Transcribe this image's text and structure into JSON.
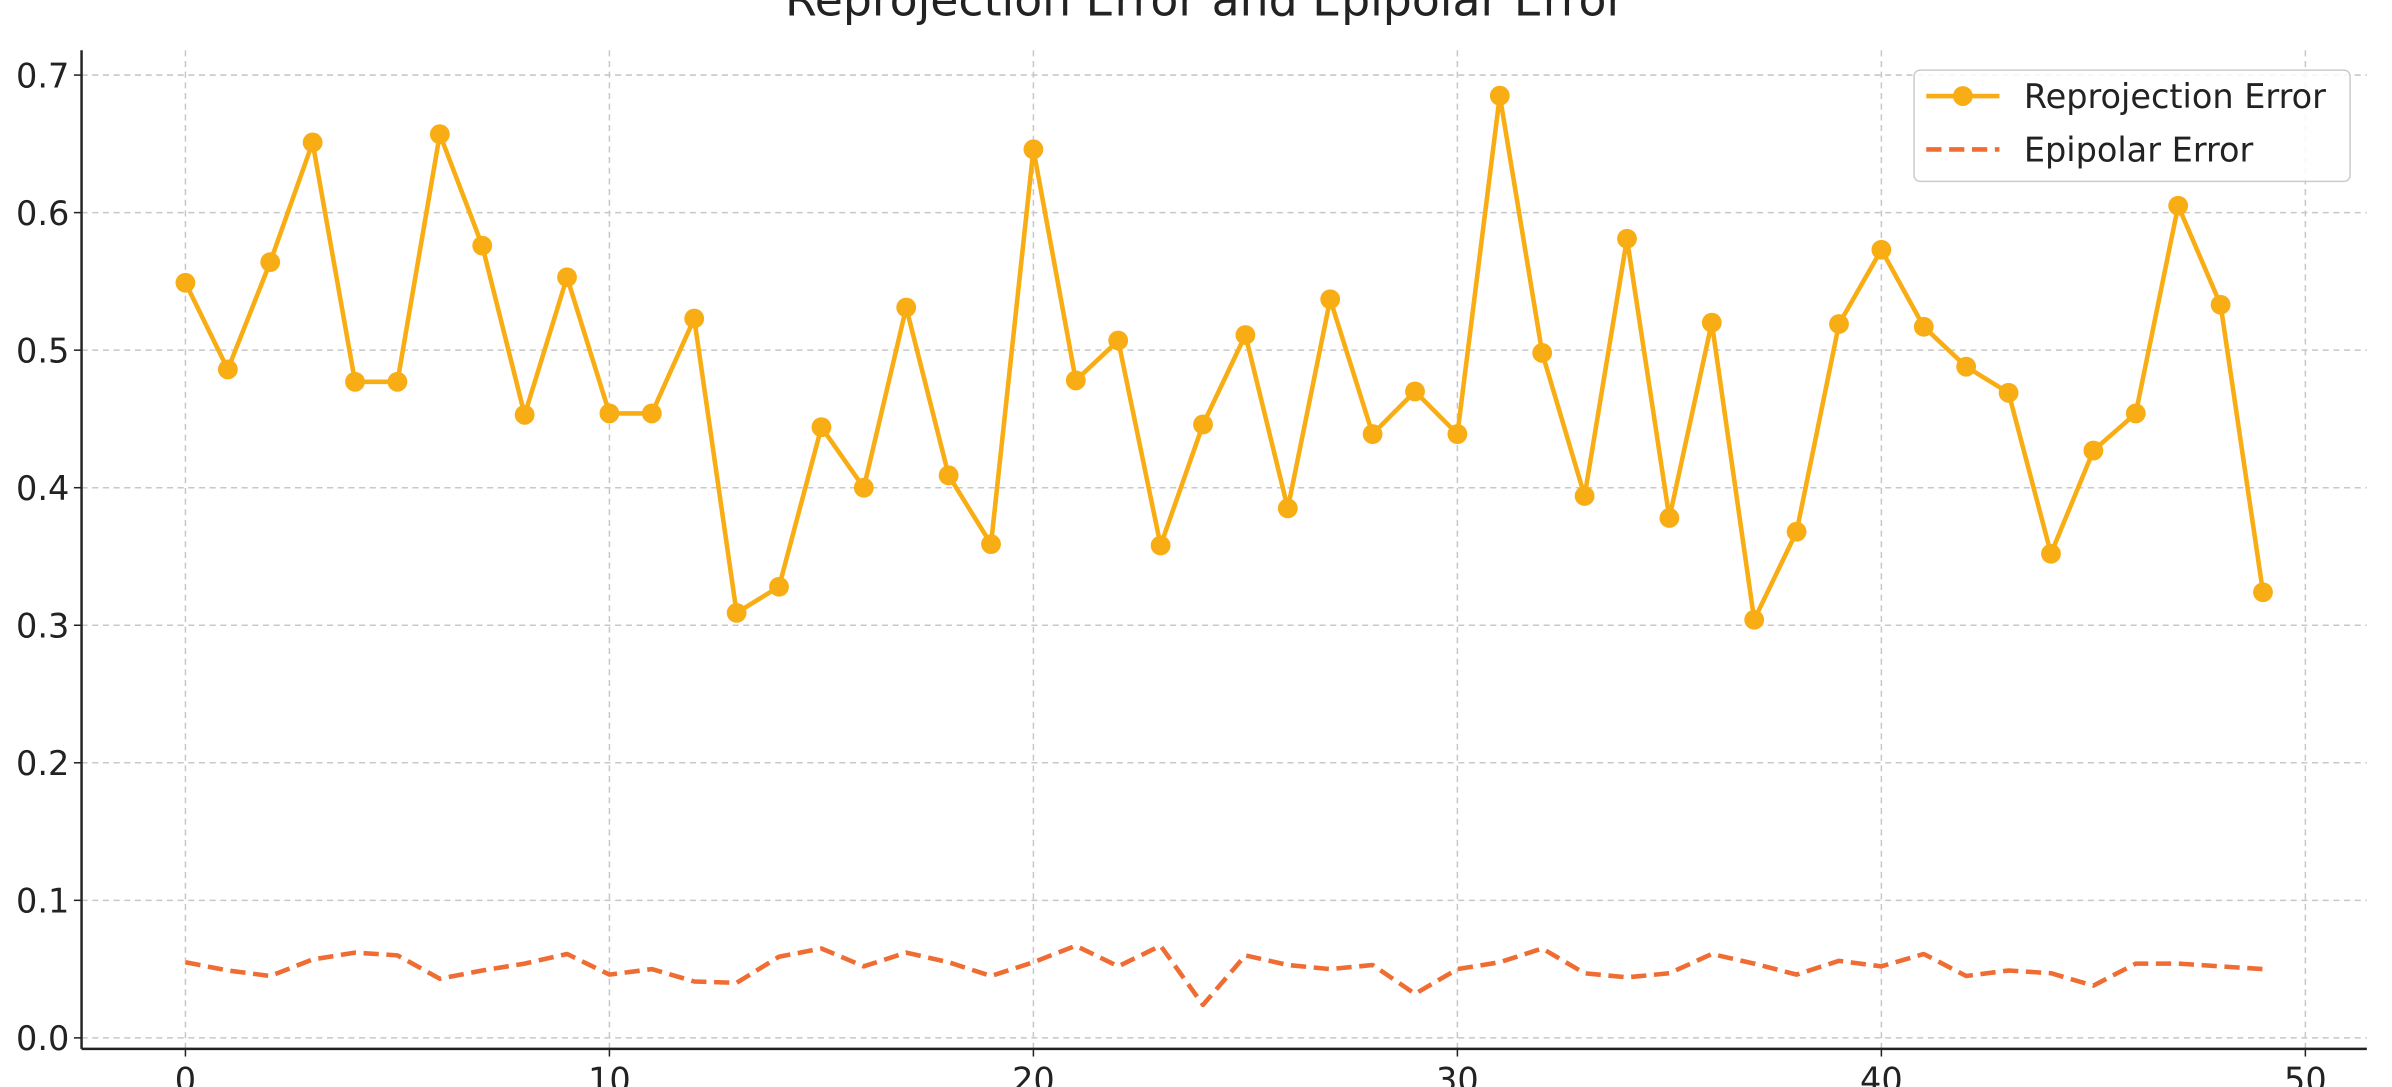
{
  "chart_data": {
    "type": "line",
    "title": "Reprojection Error and Epipolar Error",
    "x": [
      0,
      1,
      2,
      3,
      4,
      5,
      6,
      7,
      8,
      9,
      10,
      11,
      12,
      13,
      14,
      15,
      16,
      17,
      18,
      19,
      20,
      21,
      22,
      23,
      24,
      25,
      26,
      27,
      28,
      29,
      30,
      31,
      32,
      33,
      34,
      35,
      36,
      37,
      38,
      39,
      40,
      41,
      42,
      43,
      44,
      45,
      46,
      47,
      48,
      49
    ],
    "series": [
      {
        "name": "Reprojection Error",
        "color": "#f9ad14",
        "style": "solid",
        "marker": true,
        "values": [
          0.549,
          0.486,
          0.564,
          0.651,
          0.477,
          0.477,
          0.657,
          0.576,
          0.453,
          0.553,
          0.454,
          0.454,
          0.523,
          0.309,
          0.328,
          0.444,
          0.4,
          0.531,
          0.409,
          0.359,
          0.646,
          0.478,
          0.507,
          0.358,
          0.446,
          0.511,
          0.385,
          0.537,
          0.439,
          0.47,
          0.439,
          0.685,
          0.498,
          0.394,
          0.581,
          0.378,
          0.52,
          0.304,
          0.368,
          0.519,
          0.573,
          0.517,
          0.488,
          0.469,
          0.352,
          0.427,
          0.454,
          0.605,
          0.533,
          0.324
        ]
      },
      {
        "name": "Epipolar Error",
        "color": "#ef6c33",
        "style": "dashed",
        "marker": false,
        "values": [
          0.055,
          0.049,
          0.045,
          0.057,
          0.062,
          0.06,
          0.043,
          0.049,
          0.054,
          0.061,
          0.046,
          0.05,
          0.041,
          0.04,
          0.059,
          0.065,
          0.052,
          0.062,
          0.055,
          0.045,
          0.055,
          0.067,
          0.052,
          0.067,
          0.024,
          0.06,
          0.053,
          0.05,
          0.053,
          0.032,
          0.05,
          0.055,
          0.065,
          0.047,
          0.044,
          0.047,
          0.061,
          0.054,
          0.046,
          0.056,
          0.052,
          0.061,
          0.045,
          0.049,
          0.047,
          0.038,
          0.054,
          0.054,
          0.052,
          0.05
        ]
      }
    ],
    "xlim": [
      -2.45,
      51.45
    ],
    "ylim": [
      -0.008,
      0.718
    ],
    "xticks": [
      0,
      10,
      20,
      30,
      40,
      50
    ],
    "yticks": [
      {
        "value": 0,
        "label": "0.0"
      },
      0.1,
      0.2,
      0.3,
      0.4,
      0.5,
      0.6,
      0.7
    ],
    "grid": true,
    "legend": "upper right"
  }
}
